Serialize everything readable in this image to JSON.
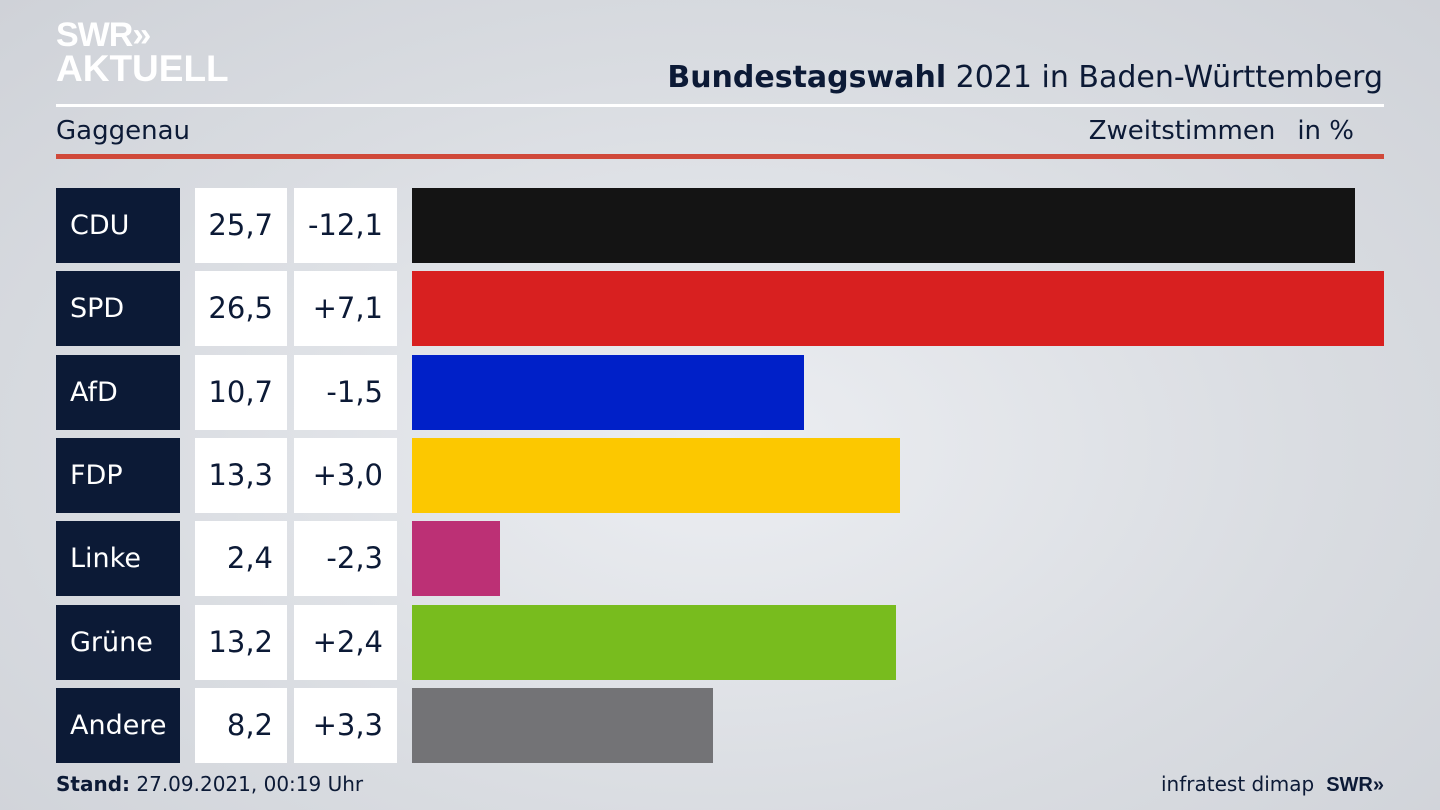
{
  "logo": {
    "line1": "SWR»",
    "line2": "AKTUELL"
  },
  "header": {
    "title_bold": "Bundestagswahl",
    "title_rest": " 2021 in Baden-Württemberg",
    "region": "Gaggenau",
    "vote_type": "Zweitstimmen",
    "unit": "in %"
  },
  "chart_data": {
    "type": "bar",
    "title": "Bundestagswahl 2021 in Baden-Württemberg – Gaggenau, Zweitstimmen in %",
    "categories": [
      "CDU",
      "SPD",
      "AfD",
      "FDP",
      "Linke",
      "Grüne",
      "Andere"
    ],
    "values": [
      25.7,
      26.5,
      10.7,
      13.3,
      2.4,
      13.2,
      8.2
    ],
    "values_label": [
      "25,7",
      "26,5",
      "10,7",
      "13,3",
      "2,4",
      "13,2",
      "8,2"
    ],
    "diff_label": [
      "-12,1",
      "+7,1",
      "-1,5",
      "+3,0",
      "-2,3",
      "+2,4",
      "+3,3"
    ],
    "colors": [
      "#141414",
      "#d82020",
      "#0020c8",
      "#fcc800",
      "#bc3075",
      "#78bc1e",
      "#737376"
    ],
    "xlim": [
      0,
      26.5
    ]
  },
  "footer": {
    "stand_label": "Stand:",
    "stand_value": " 27.09.2021, 00:19 Uhr",
    "source": "infratest dimap",
    "brand": "SWR»"
  }
}
